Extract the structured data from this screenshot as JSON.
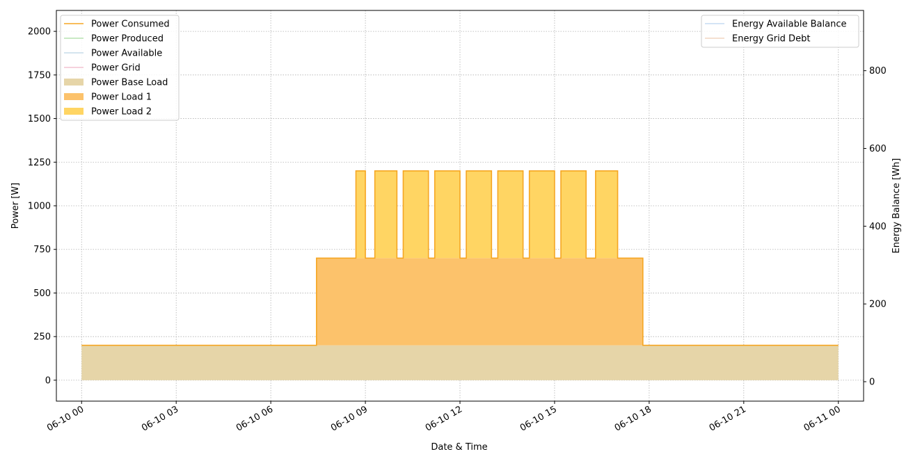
{
  "chart_data": {
    "type": "area",
    "x_unit": "hours",
    "xlabel": "Date & Time",
    "ylabel": "Power [W]",
    "y2label": "Energy Balance [Wh]",
    "xlim": [
      "06-09 23:12",
      "06-11 00:48"
    ],
    "ylim": [
      -120,
      2120
    ],
    "y2lim": [
      -50,
      955
    ],
    "x_ticks": [
      {
        "label": "06-10 00",
        "value": 0
      },
      {
        "label": "06-10 03",
        "value": 3
      },
      {
        "label": "06-10 06",
        "value": 6
      },
      {
        "label": "06-10 09",
        "value": 9
      },
      {
        "label": "06-10 12",
        "value": 12
      },
      {
        "label": "06-10 15",
        "value": 15
      },
      {
        "label": "06-10 18",
        "value": 18
      },
      {
        "label": "06-10 21",
        "value": 21
      },
      {
        "label": "06-11 00",
        "value": 24
      }
    ],
    "y_ticks": [
      0,
      250,
      500,
      750,
      1000,
      1250,
      1500,
      1750,
      2000
    ],
    "y2_ticks": [
      0,
      200,
      400,
      600,
      800
    ],
    "grid": true,
    "legend_left": {
      "placement": "top-left",
      "entries": [
        {
          "name": "Power Consumed",
          "kind": "line",
          "color": "#f5a623"
        },
        {
          "name": "Power Produced",
          "kind": "line",
          "color": "#b7e2b0"
        },
        {
          "name": "Power Available",
          "kind": "line",
          "color": "#c6dcea"
        },
        {
          "name": "Power Grid",
          "kind": "line",
          "color": "#f4c4d2"
        },
        {
          "name": "Power Base Load",
          "kind": "patch",
          "color": "#e6d5a8"
        },
        {
          "name": "Power Load 1",
          "kind": "patch",
          "color": "#fcc26b"
        },
        {
          "name": "Power Load 2",
          "kind": "patch",
          "color": "#ffd563"
        }
      ]
    },
    "legend_right": {
      "placement": "top-right",
      "entries": [
        {
          "name": "Energy Available Balance",
          "kind": "line",
          "color": "#c6dcf2"
        },
        {
          "name": "Energy Grid Debt",
          "kind": "line",
          "color": "#f2d5c0"
        }
      ]
    },
    "series": [
      {
        "name": "Power Base Load",
        "kind": "area",
        "color": "#e6d5a8",
        "steps": [
          [
            0,
            200
          ],
          [
            24,
            200
          ]
        ]
      },
      {
        "name": "Power Load 1",
        "kind": "area",
        "color": "#fcc26b",
        "steps": [
          [
            7.45,
            500
          ],
          [
            17.8,
            500
          ]
        ]
      },
      {
        "name": "Power Load 2",
        "kind": "area",
        "color": "#ffd563",
        "pulses": [
          [
            8.7,
            9.0
          ],
          [
            9.3,
            10.0
          ],
          [
            10.2,
            11.0
          ],
          [
            11.2,
            12.0
          ],
          [
            12.2,
            13.0
          ],
          [
            13.2,
            14.0
          ],
          [
            14.2,
            15.0
          ],
          [
            15.2,
            16.0
          ],
          [
            16.3,
            17.0
          ]
        ],
        "pulse_value": 500
      },
      {
        "name": "Power Consumed",
        "kind": "line",
        "color": "#f5a623",
        "steps": [
          [
            0,
            200
          ],
          [
            7.45,
            700
          ],
          [
            8.7,
            1200
          ],
          [
            9.0,
            700
          ],
          [
            9.3,
            1200
          ],
          [
            10.0,
            700
          ],
          [
            10.2,
            1200
          ],
          [
            11.0,
            700
          ],
          [
            11.2,
            1200
          ],
          [
            12.0,
            700
          ],
          [
            12.2,
            1200
          ],
          [
            13.0,
            700
          ],
          [
            13.2,
            1200
          ],
          [
            14.0,
            700
          ],
          [
            14.2,
            1200
          ],
          [
            15.0,
            700
          ],
          [
            15.2,
            1200
          ],
          [
            16.0,
            700
          ],
          [
            16.3,
            1200
          ],
          [
            17.0,
            700
          ],
          [
            17.8,
            200
          ],
          [
            24,
            200
          ]
        ]
      }
    ]
  }
}
